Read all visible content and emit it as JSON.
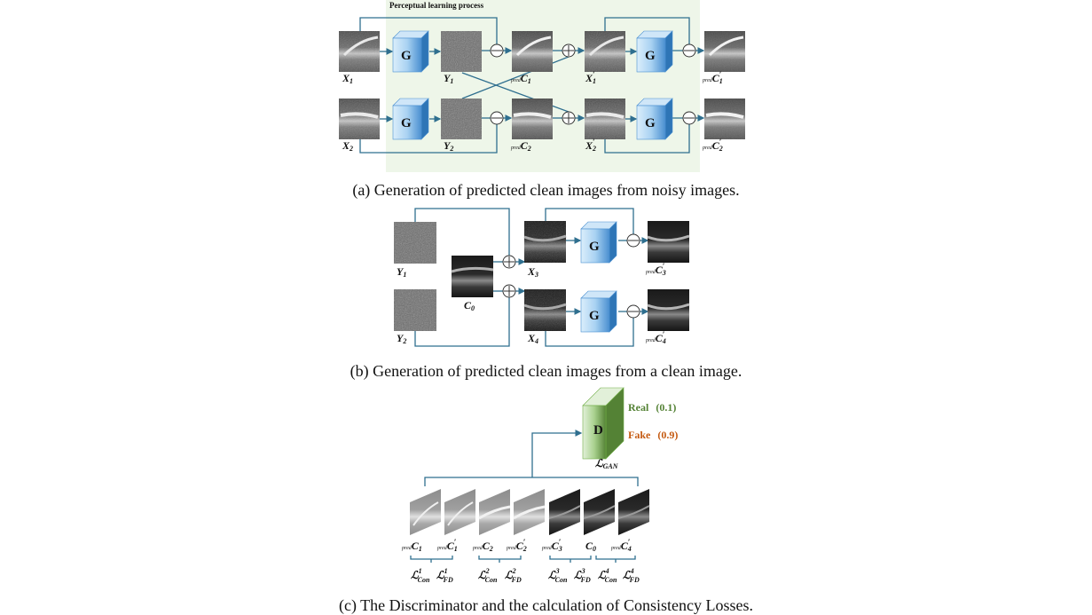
{
  "panel_a": {
    "title": "Perceptual learning process",
    "generator": "G",
    "labels": {
      "x1": "X",
      "x1_sub": "1",
      "y1": "Y",
      "y1_sub": "1",
      "pc1_pre": "pred",
      "pc1": "C",
      "pc1_sub": "1",
      "x1p": "X",
      "x1p_sub": "1",
      "x1p_prime": "′",
      "pc1p_pre": "pred",
      "pc1p": "C",
      "pc1p_sub": "1",
      "pc1p_prime": "′",
      "x2": "X",
      "x2_sub": "2",
      "y2": "Y",
      "y2_sub": "2",
      "pc2_pre": "pred",
      "pc2": "C",
      "pc2_sub": "2",
      "x2p": "X",
      "x2p_sub": "2",
      "x2p_prime": "′",
      "pc2p_pre": "pred",
      "pc2p": "C",
      "pc2p_sub": "2",
      "pc2p_prime": "′"
    },
    "caption": "(a) Generation of predicted clean images from noisy images."
  },
  "panel_b": {
    "generator": "G",
    "labels": {
      "y1": "Y",
      "y1_sub": "1",
      "y2": "Y",
      "y2_sub": "2",
      "c0": "C",
      "c0_sub": "0",
      "x3": "X",
      "x3_sub": "3",
      "x4": "X",
      "x4_sub": "4",
      "pc3p_pre": "pred",
      "pc3p": "C",
      "pc3p_sub": "3",
      "pc3p_prime": "′",
      "pc4p_pre": "pred",
      "pc4p": "C",
      "pc4p_sub": "4",
      "pc4p_prime": "′"
    },
    "caption": "(b) Generation of predicted clean images from a clean image."
  },
  "panel_c": {
    "discriminator": "D",
    "real_label": "Real",
    "real_value": "(0.1)",
    "fake_label": "Fake",
    "fake_value": "(0.9)",
    "gan_loss": "ℒ",
    "gan_loss_sub": "GAN",
    "image_labels": [
      {
        "pre": "pred",
        "main": "C",
        "sub": "1",
        "prime": ""
      },
      {
        "pre": "pred",
        "main": "C",
        "sub": "1",
        "prime": "′"
      },
      {
        "pre": "pred",
        "main": "C",
        "sub": "2",
        "prime": ""
      },
      {
        "pre": "pred",
        "main": "C",
        "sub": "2",
        "prime": "′"
      },
      {
        "pre": "pred",
        "main": "C",
        "sub": "3",
        "prime": "′"
      },
      {
        "pre": "",
        "main": "C",
        "sub": "0",
        "prime": ""
      },
      {
        "pre": "pred",
        "main": "C",
        "sub": "4",
        "prime": "′"
      }
    ],
    "losses": [
      {
        "main": "ℒ",
        "sup": "1",
        "sub": "Con"
      },
      {
        "main": "ℒ",
        "sup": "1",
        "sub": "FD"
      },
      {
        "main": "ℒ",
        "sup": "2",
        "sub": "Con"
      },
      {
        "main": "ℒ",
        "sup": "2",
        "sub": "FD"
      },
      {
        "main": "ℒ",
        "sup": "3",
        "sub": "Con"
      },
      {
        "main": "ℒ",
        "sup": "3",
        "sub": "FD"
      },
      {
        "main": "ℒ",
        "sup": "4",
        "sub": "Con"
      },
      {
        "main": "ℒ",
        "sup": "4",
        "sub": "FD"
      }
    ],
    "caption": "(c) The Discriminator and the calculation of Consistency Losses."
  },
  "colors": {
    "line": "#2f6f8f",
    "panel_bg": "#eef6e9",
    "gen_blue": "#5b9bd5",
    "disc_green": "#70ad47",
    "real_color": "#548235",
    "fake_color": "#c55a11"
  }
}
